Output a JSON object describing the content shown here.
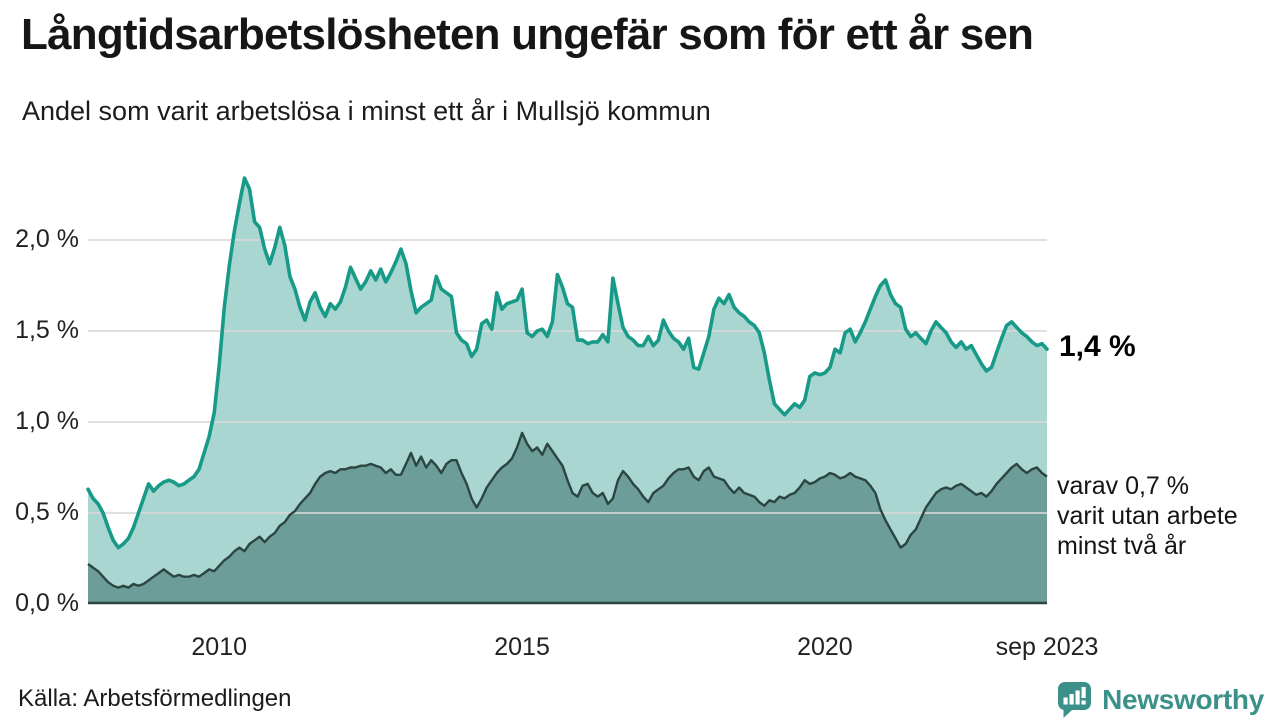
{
  "title": "Långtidsarbetslösheten ungefär som för ett år sen",
  "subtitle": "Andel som varit arbetslösa i minst ett år i Mullsjö kommun",
  "source": "Källa: Arbetsförmedlingen",
  "branding": {
    "name": "Newsworthy",
    "color": "#3b918a"
  },
  "annotations": {
    "latest_total": "1,4 %",
    "secondary": [
      "varav 0,7 %",
      "varit utan arbete",
      "minst två år"
    ]
  },
  "chart_data": {
    "type": "area",
    "title": "Långtidsarbetslösheten ungefär som för ett år sen",
    "subtitle": "Andel som varit arbetslösa i minst ett år i Mullsjö kommun",
    "x_start": "2007-11",
    "x_end": "2023-09",
    "x_frequency": "monthly",
    "ylim": [
      0,
      2.4
    ],
    "grid": true,
    "grid_color": "#d9d9d9",
    "y_ticks": [
      {
        "value": 0.0,
        "label": "0,0 %"
      },
      {
        "value": 0.5,
        "label": "0,5 %"
      },
      {
        "value": 1.0,
        "label": "1,0 %"
      },
      {
        "value": 1.5,
        "label": "1,5 %"
      },
      {
        "value": 2.0,
        "label": "2,0 %"
      }
    ],
    "x_ticks": [
      {
        "index": 26,
        "label": "2010"
      },
      {
        "index": 86,
        "label": "2015"
      },
      {
        "index": 146,
        "label": "2020"
      },
      {
        "index": 190,
        "label": "sep 2023"
      }
    ],
    "series": [
      {
        "name": "Andel som varit arbetslösa i minst ett år",
        "latest_label": "1,4 %",
        "line_color": "#189a88",
        "fill_color": "#a9d6d0",
        "values": [
          0.63,
          0.58,
          0.55,
          0.5,
          0.42,
          0.35,
          0.31,
          0.33,
          0.36,
          0.42,
          0.5,
          0.58,
          0.66,
          0.62,
          0.65,
          0.67,
          0.68,
          0.67,
          0.65,
          0.66,
          0.68,
          0.7,
          0.74,
          0.83,
          0.92,
          1.05,
          1.31,
          1.63,
          1.86,
          2.05,
          2.2,
          2.34,
          2.28,
          2.1,
          2.07,
          1.95,
          1.87,
          1.96,
          2.07,
          1.97,
          1.8,
          1.73,
          1.63,
          1.56,
          1.66,
          1.71,
          1.63,
          1.58,
          1.65,
          1.62,
          1.66,
          1.74,
          1.85,
          1.79,
          1.73,
          1.77,
          1.83,
          1.78,
          1.84,
          1.77,
          1.82,
          1.88,
          1.95,
          1.87,
          1.72,
          1.6,
          1.63,
          1.65,
          1.67,
          1.8,
          1.73,
          1.71,
          1.69,
          1.49,
          1.45,
          1.43,
          1.36,
          1.4,
          1.54,
          1.56,
          1.51,
          1.71,
          1.62,
          1.65,
          1.66,
          1.67,
          1.73,
          1.49,
          1.47,
          1.5,
          1.51,
          1.47,
          1.55,
          1.81,
          1.74,
          1.65,
          1.63,
          1.45,
          1.45,
          1.43,
          1.44,
          1.44,
          1.48,
          1.44,
          1.79,
          1.65,
          1.52,
          1.47,
          1.45,
          1.42,
          1.42,
          1.47,
          1.42,
          1.45,
          1.56,
          1.5,
          1.46,
          1.44,
          1.4,
          1.46,
          1.3,
          1.29,
          1.38,
          1.47,
          1.62,
          1.68,
          1.65,
          1.7,
          1.63,
          1.6,
          1.58,
          1.55,
          1.53,
          1.49,
          1.38,
          1.23,
          1.1,
          1.07,
          1.04,
          1.07,
          1.1,
          1.08,
          1.12,
          1.25,
          1.27,
          1.26,
          1.27,
          1.3,
          1.4,
          1.38,
          1.49,
          1.51,
          1.44,
          1.49,
          1.55,
          1.62,
          1.69,
          1.75,
          1.78,
          1.7,
          1.65,
          1.63,
          1.51,
          1.47,
          1.49,
          1.46,
          1.43,
          1.5,
          1.55,
          1.52,
          1.49,
          1.44,
          1.41,
          1.44,
          1.4,
          1.42,
          1.37,
          1.32,
          1.28,
          1.3,
          1.38,
          1.46,
          1.53,
          1.55,
          1.52,
          1.49,
          1.47,
          1.44,
          1.42,
          1.43,
          1.4
        ]
      },
      {
        "name": "varav utan arbete minst två år",
        "latest_label": "0,7 %",
        "line_color": "#2b4541",
        "fill_color": "#6d9d98",
        "values": [
          0.22,
          0.2,
          0.18,
          0.15,
          0.12,
          0.1,
          0.09,
          0.1,
          0.09,
          0.11,
          0.1,
          0.11,
          0.13,
          0.15,
          0.17,
          0.19,
          0.17,
          0.15,
          0.16,
          0.15,
          0.15,
          0.16,
          0.15,
          0.17,
          0.19,
          0.18,
          0.21,
          0.24,
          0.26,
          0.29,
          0.31,
          0.29,
          0.33,
          0.35,
          0.37,
          0.34,
          0.37,
          0.39,
          0.43,
          0.45,
          0.49,
          0.51,
          0.55,
          0.58,
          0.61,
          0.66,
          0.7,
          0.72,
          0.73,
          0.72,
          0.74,
          0.74,
          0.75,
          0.75,
          0.76,
          0.76,
          0.77,
          0.76,
          0.75,
          0.72,
          0.74,
          0.71,
          0.71,
          0.77,
          0.83,
          0.76,
          0.81,
          0.75,
          0.79,
          0.76,
          0.72,
          0.77,
          0.79,
          0.79,
          0.72,
          0.66,
          0.58,
          0.53,
          0.58,
          0.64,
          0.68,
          0.72,
          0.75,
          0.77,
          0.8,
          0.86,
          0.94,
          0.88,
          0.84,
          0.86,
          0.82,
          0.88,
          0.84,
          0.8,
          0.76,
          0.68,
          0.61,
          0.59,
          0.65,
          0.66,
          0.61,
          0.59,
          0.61,
          0.55,
          0.58,
          0.68,
          0.73,
          0.7,
          0.66,
          0.63,
          0.59,
          0.56,
          0.61,
          0.63,
          0.65,
          0.69,
          0.72,
          0.74,
          0.74,
          0.75,
          0.7,
          0.68,
          0.73,
          0.75,
          0.7,
          0.69,
          0.68,
          0.64,
          0.61,
          0.64,
          0.61,
          0.6,
          0.59,
          0.56,
          0.54,
          0.57,
          0.56,
          0.59,
          0.58,
          0.6,
          0.61,
          0.64,
          0.68,
          0.66,
          0.67,
          0.69,
          0.7,
          0.72,
          0.71,
          0.69,
          0.7,
          0.72,
          0.7,
          0.69,
          0.68,
          0.65,
          0.61,
          0.52,
          0.46,
          0.41,
          0.36,
          0.31,
          0.33,
          0.38,
          0.41,
          0.47,
          0.53,
          0.57,
          0.61,
          0.63,
          0.64,
          0.63,
          0.65,
          0.66,
          0.64,
          0.62,
          0.6,
          0.61,
          0.59,
          0.62,
          0.66,
          0.69,
          0.72,
          0.75,
          0.77,
          0.74,
          0.72,
          0.74,
          0.75,
          0.72,
          0.7
        ]
      }
    ]
  }
}
